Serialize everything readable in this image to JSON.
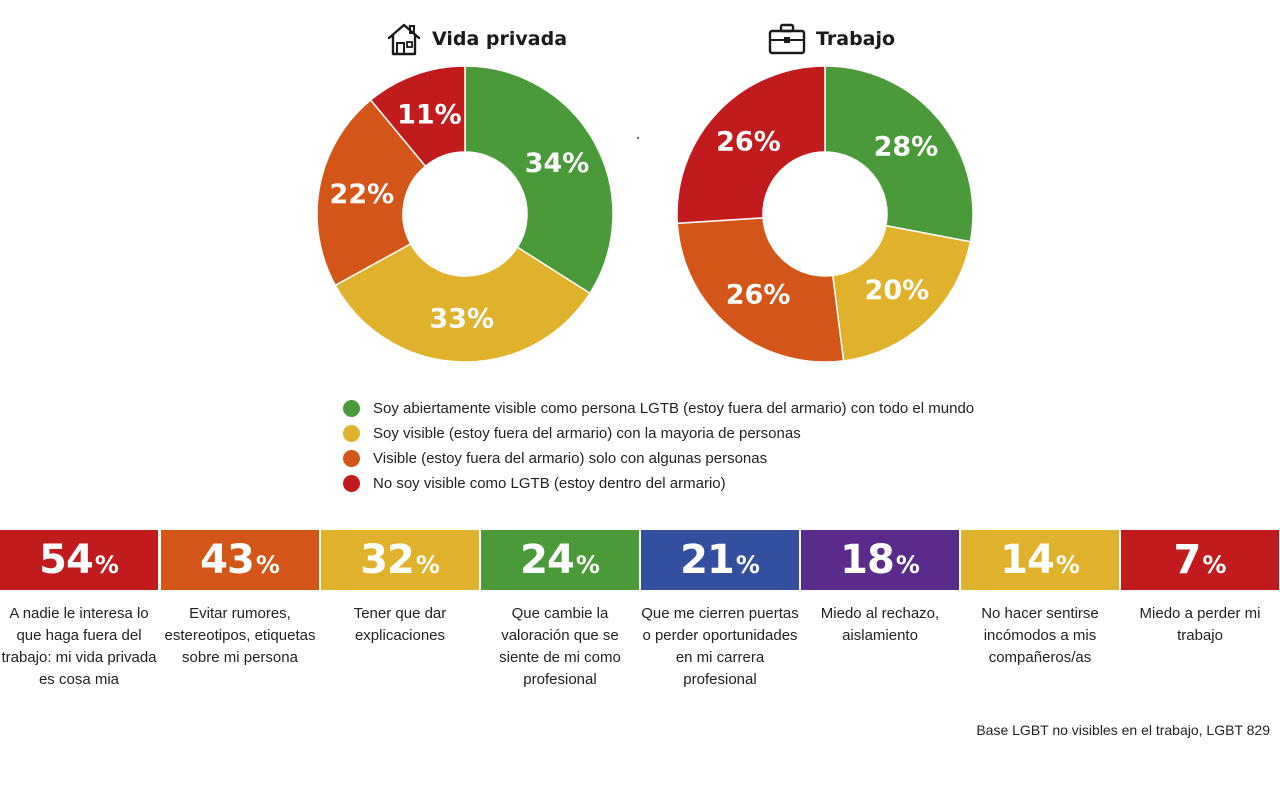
{
  "chart_data": [
    {
      "type": "pie",
      "title": "Vida privada",
      "icon": "house-icon",
      "slices": [
        {
          "category": "Soy abiertamente visible como persona LGTB (estoy fuera del armario) con todo el mundo",
          "value": 34,
          "label": "34%",
          "color": "#4b9a3a"
        },
        {
          "category": "Soy visible (estoy fuera del armario) con la mayoria de personas",
          "value": 33,
          "label": "33%",
          "color": "#e0b12a"
        },
        {
          "category": "Visible (estoy fuera del armario) solo con algunas personas",
          "value": 22,
          "label": "22%",
          "color": "#d35518"
        },
        {
          "category": "No soy visible como LGTB (estoy dentro del armario)",
          "value": 11,
          "label": "11%",
          "color": "#c11b1d"
        }
      ]
    },
    {
      "type": "pie",
      "title": "Trabajo",
      "icon": "briefcase-icon",
      "slices": [
        {
          "category": "Soy abiertamente visible como persona LGTB (estoy fuera del armario) con todo el mundo",
          "value": 28,
          "label": "28%",
          "color": "#4b9a3a"
        },
        {
          "category": "Soy visible (estoy fuera del armario) con la mayoria de personas",
          "value": 20,
          "label": "20%",
          "color": "#e0b12a"
        },
        {
          "category": "Visible (estoy fuera del armario) solo con algunas personas",
          "value": 26,
          "label": "26%",
          "color": "#d35518"
        },
        {
          "category": "No soy visible como LGTB (estoy dentro del armario)",
          "value": 26,
          "label": "26%",
          "color": "#c11b1d"
        }
      ]
    },
    {
      "type": "bar",
      "categories": [
        "A nadie le interesa lo que haga fuera del trabajo: mi vida privada es cosa mia",
        "Evitar rumores, estereotipos, etiquetas sobre mi persona",
        "Tener que dar explicaciones",
        "Que cambie la valoración que se siente de mi como profesional",
        "Que me cierren puertas o perder oportunidades en mi carrera profesional",
        "Miedo al rechazo, aislamiento",
        "No hacer sentirse incómodos a mis compañeros/as",
        "Miedo a perder mi trabajo"
      ],
      "values": [
        54,
        43,
        32,
        24,
        21,
        18,
        14,
        7
      ],
      "unit": "%",
      "colors": [
        "#c11b1d",
        "#d35518",
        "#e0b12a",
        "#4b9a3a",
        "#32509e",
        "#5b2b8c",
        "#e0b12a",
        "#c11b1d"
      ]
    }
  ],
  "legend": [
    {
      "label": "Soy abiertamente visible como persona LGTB (estoy fuera del armario) con todo el mundo",
      "color": "#4b9a3a"
    },
    {
      "label": "Soy visible (estoy fuera del armario) con la mayoria de personas",
      "color": "#e0b12a"
    },
    {
      "label": "Visible (estoy fuera del armario) solo con algunas personas",
      "color": "#d35518"
    },
    {
      "label": "No soy visible como LGTB (estoy dentro del armario)",
      "color": "#c11b1d"
    }
  ],
  "base_note": "Base LGBT no visibles en el trabajo, LGBT 829"
}
